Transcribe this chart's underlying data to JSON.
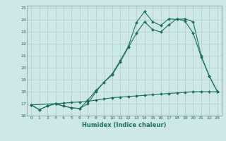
{
  "xlabel": "Humidex (Indice chaleur)",
  "xlim": [
    -0.5,
    23.5
  ],
  "ylim": [
    16,
    25.2
  ],
  "yticks": [
    16,
    17,
    18,
    19,
    20,
    21,
    22,
    23,
    24,
    25
  ],
  "xticks": [
    0,
    1,
    2,
    3,
    4,
    5,
    6,
    7,
    8,
    9,
    10,
    11,
    12,
    13,
    14,
    15,
    16,
    17,
    18,
    19,
    20,
    21,
    22,
    23
  ],
  "bg_color": "#cce8e8",
  "grid_color": "#b0c8c8",
  "line_color": "#1a7060",
  "line1_x": [
    0,
    1,
    2,
    3,
    4,
    5,
    6,
    7,
    8,
    9,
    10,
    11,
    12,
    13,
    14,
    15,
    16,
    17,
    18,
    19,
    20,
    21,
    22,
    23
  ],
  "line1_y": [
    16.9,
    16.5,
    16.8,
    17.0,
    16.8,
    16.65,
    16.6,
    17.0,
    18.0,
    18.8,
    19.5,
    20.6,
    21.8,
    23.8,
    24.7,
    23.85,
    23.55,
    24.1,
    24.05,
    24.1,
    23.85,
    21.0,
    19.3,
    18.0
  ],
  "line2_x": [
    0,
    3,
    4,
    5,
    6,
    7,
    8,
    9,
    10,
    11,
    12,
    13,
    14,
    15,
    16,
    17,
    18,
    19,
    20,
    21,
    22,
    23
  ],
  "line2_y": [
    16.9,
    17.0,
    16.8,
    16.65,
    16.6,
    17.3,
    18.1,
    18.8,
    19.4,
    20.5,
    21.7,
    22.9,
    23.85,
    23.2,
    23.0,
    23.6,
    24.1,
    23.9,
    22.9,
    20.9,
    19.3,
    18.0
  ],
  "line3_x": [
    0,
    1,
    2,
    3,
    4,
    5,
    6,
    7,
    8,
    9,
    10,
    11,
    12,
    13,
    14,
    15,
    16,
    17,
    18,
    19,
    20,
    21,
    22,
    23
  ],
  "line3_y": [
    16.9,
    16.5,
    16.8,
    17.0,
    17.05,
    17.1,
    17.15,
    17.2,
    17.3,
    17.4,
    17.5,
    17.55,
    17.6,
    17.65,
    17.7,
    17.75,
    17.8,
    17.85,
    17.9,
    17.95,
    18.0,
    18.0,
    18.0,
    18.0
  ]
}
